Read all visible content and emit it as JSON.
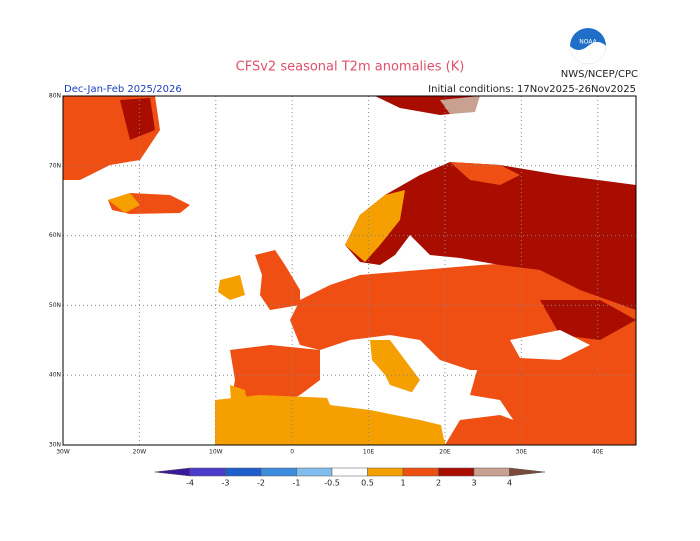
{
  "header": {
    "title": "CFSv2 seasonal T2m anomalies (K)",
    "agency": "NWS/NCEP/CPC",
    "period": "Dec-Jan-Feb 2025/2026",
    "initial_conditions": "Initial conditions: 17Nov2025-26Nov2025"
  },
  "map": {
    "lon_labels": [
      "30W",
      "20W",
      "10W",
      "0",
      "10E",
      "20E",
      "30E",
      "40E"
    ],
    "lat_labels": [
      "80N",
      "70N",
      "60N",
      "50N",
      "40N",
      "30N"
    ]
  },
  "colorbar": {
    "labels": [
      "-4",
      "-3",
      "-2",
      "-1",
      "-0.5",
      "0.5",
      "1",
      "2",
      "3",
      "4"
    ],
    "colors": [
      "#3a1a9a",
      "#4a3ccc",
      "#1f5fcc",
      "#3d8bdc",
      "#80bdee",
      "#ffffff",
      "#f5a000",
      "#ef4f12",
      "#a80d00",
      "#c9a190",
      "#7a4a38"
    ]
  }
}
